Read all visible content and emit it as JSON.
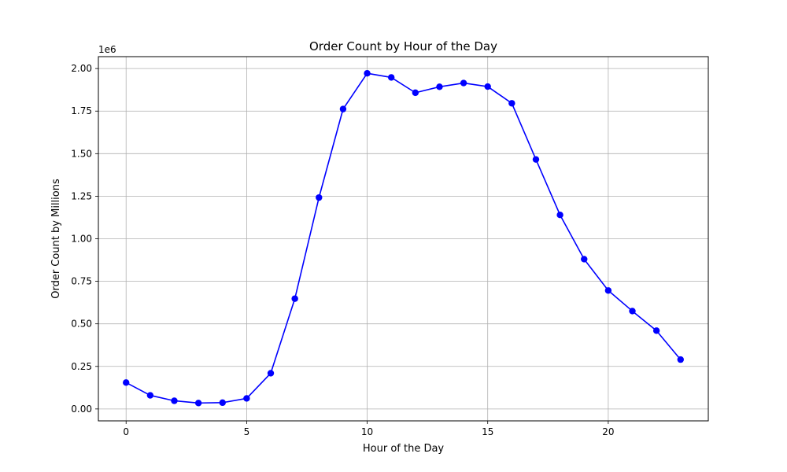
{
  "chart_data": {
    "type": "line",
    "title": "Order Count by Hour of the Day",
    "xlabel": "Hour of the Day",
    "ylabel": "Order Count by Millions",
    "y_offset_label": "1e6",
    "xlim": [
      -1.15,
      24.15
    ],
    "ylim": [
      -70000,
      2070000
    ],
    "x_ticks": [
      0,
      5,
      10,
      15,
      20
    ],
    "x_tick_labels": [
      "0",
      "5",
      "10",
      "15",
      "20"
    ],
    "y_ticks": [
      0,
      250000,
      500000,
      750000,
      1000000,
      1250000,
      1500000,
      1750000,
      2000000
    ],
    "y_tick_labels": [
      "0.00",
      "0.25",
      "0.50",
      "0.75",
      "1.00",
      "1.25",
      "1.50",
      "1.75",
      "2.00"
    ],
    "grid": true,
    "series": [
      {
        "color": "#0000ff",
        "marker": "circle",
        "x": [
          0,
          1,
          2,
          3,
          4,
          5,
          6,
          7,
          8,
          9,
          10,
          11,
          12,
          13,
          14,
          15,
          16,
          17,
          18,
          19,
          20,
          21,
          22,
          23
        ],
        "values": [
          155000,
          80000,
          48000,
          35000,
          37000,
          62000,
          210000,
          648000,
          1242000,
          1762000,
          1972000,
          1948000,
          1858000,
          1893000,
          1915000,
          1894000,
          1796000,
          1466000,
          1140000,
          880000,
          696000,
          575000,
          460000,
          290000
        ]
      }
    ]
  }
}
